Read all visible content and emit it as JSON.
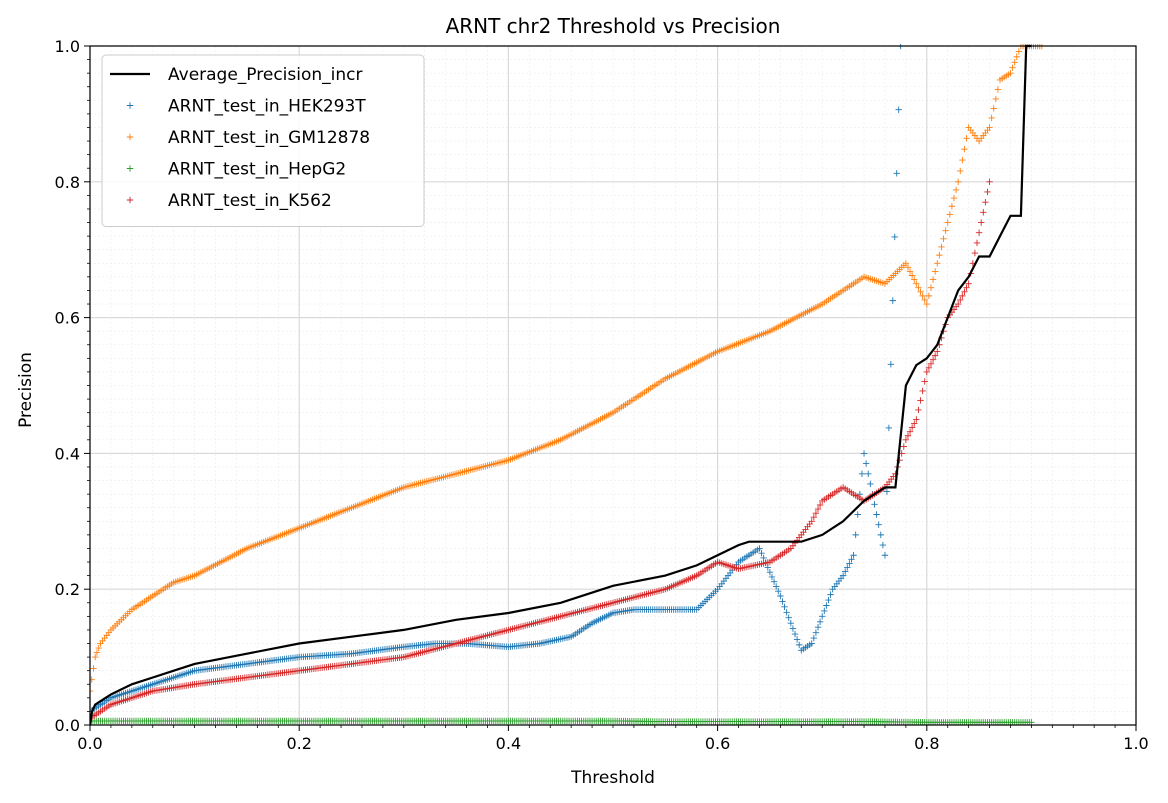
{
  "chart_data": {
    "type": "scatter",
    "title": "ARNT chr2 Threshold vs Precision",
    "xlabel": "Threshold",
    "ylabel": "Precision",
    "xlim": [
      0.0,
      1.0
    ],
    "ylim": [
      0.0,
      1.0
    ],
    "xticks": [
      "0.0",
      "0.2",
      "0.4",
      "0.6",
      "0.8",
      "1.0"
    ],
    "yticks": [
      "0.0",
      "0.2",
      "0.4",
      "0.6",
      "0.8",
      "1.0"
    ],
    "grid": true,
    "minor_grid": true,
    "legend_position": "top-left",
    "series": [
      {
        "name": "Average_Precision_incr",
        "kind": "line",
        "color": "#000000",
        "x": [
          0.0,
          0.002,
          0.005,
          0.01,
          0.02,
          0.04,
          0.06,
          0.08,
          0.1,
          0.15,
          0.2,
          0.25,
          0.3,
          0.35,
          0.4,
          0.45,
          0.5,
          0.55,
          0.58,
          0.6,
          0.62,
          0.63,
          0.65,
          0.68,
          0.7,
          0.72,
          0.74,
          0.76,
          0.77,
          0.78,
          0.79,
          0.8,
          0.81,
          0.82,
          0.83,
          0.84,
          0.85,
          0.86,
          0.87,
          0.88,
          0.89,
          0.895,
          0.9
        ],
        "y": [
          0.0,
          0.02,
          0.03,
          0.035,
          0.045,
          0.06,
          0.07,
          0.08,
          0.09,
          0.105,
          0.12,
          0.13,
          0.14,
          0.155,
          0.165,
          0.18,
          0.205,
          0.22,
          0.235,
          0.25,
          0.265,
          0.27,
          0.27,
          0.27,
          0.28,
          0.3,
          0.33,
          0.35,
          0.35,
          0.5,
          0.53,
          0.54,
          0.56,
          0.6,
          0.64,
          0.66,
          0.69,
          0.69,
          0.72,
          0.75,
          0.75,
          1.0,
          1.0
        ]
      },
      {
        "name": "ARNT_test_in_HEK293T",
        "kind": "points",
        "color": "#1f77b4",
        "x": [
          0.0,
          0.01,
          0.02,
          0.04,
          0.06,
          0.08,
          0.1,
          0.15,
          0.2,
          0.25,
          0.3,
          0.33,
          0.36,
          0.4,
          0.43,
          0.46,
          0.48,
          0.5,
          0.52,
          0.55,
          0.58,
          0.6,
          0.62,
          0.64,
          0.66,
          0.68,
          0.69,
          0.7,
          0.71,
          0.72,
          0.73,
          0.74,
          0.76,
          0.775
        ],
        "y": [
          0.02,
          0.03,
          0.04,
          0.05,
          0.06,
          0.07,
          0.08,
          0.09,
          0.1,
          0.105,
          0.115,
          0.12,
          0.12,
          0.115,
          0.12,
          0.13,
          0.15,
          0.165,
          0.17,
          0.17,
          0.17,
          0.2,
          0.24,
          0.26,
          0.19,
          0.11,
          0.12,
          0.16,
          0.2,
          0.22,
          0.25,
          0.4,
          0.25,
          1.0
        ]
      },
      {
        "name": "ARNT_test_in_GM12878",
        "kind": "points",
        "color": "#ff7f0e",
        "x": [
          0.0,
          0.005,
          0.01,
          0.02,
          0.04,
          0.06,
          0.08,
          0.1,
          0.15,
          0.2,
          0.25,
          0.3,
          0.35,
          0.4,
          0.45,
          0.5,
          0.55,
          0.6,
          0.65,
          0.7,
          0.72,
          0.74,
          0.76,
          0.78,
          0.79,
          0.8,
          0.81,
          0.82,
          0.83,
          0.84,
          0.85,
          0.86,
          0.87,
          0.88,
          0.89,
          0.9,
          0.91
        ],
        "y": [
          0.05,
          0.1,
          0.12,
          0.14,
          0.17,
          0.19,
          0.21,
          0.22,
          0.26,
          0.29,
          0.32,
          0.35,
          0.37,
          0.39,
          0.42,
          0.46,
          0.51,
          0.55,
          0.58,
          0.62,
          0.64,
          0.66,
          0.65,
          0.68,
          0.65,
          0.62,
          0.68,
          0.74,
          0.8,
          0.88,
          0.86,
          0.88,
          0.95,
          0.96,
          1.0,
          1.0,
          1.0
        ]
      },
      {
        "name": "ARNT_test_in_HepG2",
        "kind": "points",
        "color": "#2ca02c",
        "x": [
          0.0,
          0.05,
          0.1,
          0.15,
          0.2,
          0.25,
          0.3,
          0.35,
          0.4,
          0.45,
          0.5,
          0.55,
          0.6,
          0.65,
          0.7,
          0.75,
          0.8,
          0.85,
          0.9
        ],
        "y": [
          0.006,
          0.006,
          0.006,
          0.006,
          0.006,
          0.006,
          0.006,
          0.006,
          0.006,
          0.006,
          0.006,
          0.005,
          0.005,
          0.005,
          0.005,
          0.005,
          0.004,
          0.004,
          0.004
        ]
      },
      {
        "name": "ARNT_test_in_K562",
        "kind": "points",
        "color": "#d62728",
        "x": [
          0.0,
          0.01,
          0.02,
          0.04,
          0.06,
          0.08,
          0.1,
          0.15,
          0.2,
          0.25,
          0.3,
          0.35,
          0.4,
          0.45,
          0.5,
          0.55,
          0.58,
          0.6,
          0.62,
          0.65,
          0.67,
          0.69,
          0.7,
          0.72,
          0.74,
          0.76,
          0.77,
          0.78,
          0.79,
          0.8,
          0.81,
          0.82,
          0.83,
          0.84,
          0.86
        ],
        "y": [
          0.01,
          0.02,
          0.03,
          0.04,
          0.05,
          0.055,
          0.06,
          0.07,
          0.08,
          0.09,
          0.1,
          0.12,
          0.14,
          0.16,
          0.18,
          0.2,
          0.22,
          0.24,
          0.23,
          0.24,
          0.26,
          0.3,
          0.33,
          0.35,
          0.33,
          0.35,
          0.37,
          0.42,
          0.45,
          0.52,
          0.55,
          0.6,
          0.62,
          0.65,
          0.8
        ]
      }
    ]
  }
}
